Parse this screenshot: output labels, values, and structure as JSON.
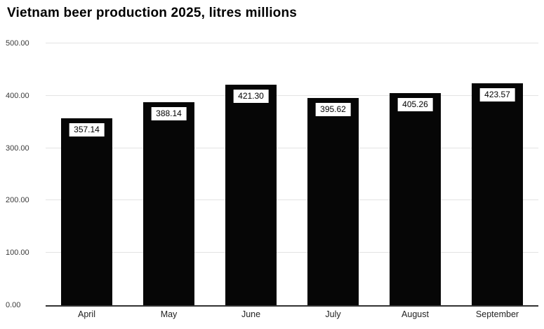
{
  "title": "Vietnam beer production 2025, litres millions",
  "chart_data": {
    "type": "bar",
    "title": "Vietnam beer production 2025, litres millions",
    "categories": [
      "April",
      "May",
      "June",
      "July",
      "August",
      "September"
    ],
    "values": [
      357.14,
      388.14,
      421.3,
      395.62,
      405.26,
      423.57
    ],
    "value_labels": [
      "357.14",
      "388.14",
      "421.30",
      "395.62",
      "405.26",
      "423.57"
    ],
    "xlabel": "",
    "ylabel": "",
    "ylim": [
      0,
      500
    ],
    "ytick_values": [
      0,
      100,
      200,
      300,
      400,
      500
    ],
    "ytick_labels": [
      "0.00",
      "100.00",
      "200.00",
      "300.00",
      "400.00",
      "500.00"
    ],
    "grid": true,
    "legend": "none",
    "bar_color": "#060606",
    "value_label_bg": "#ffffff",
    "value_label_color": "#000000",
    "gridline_color": "#e3e3e3",
    "axis_color": "#333333"
  }
}
